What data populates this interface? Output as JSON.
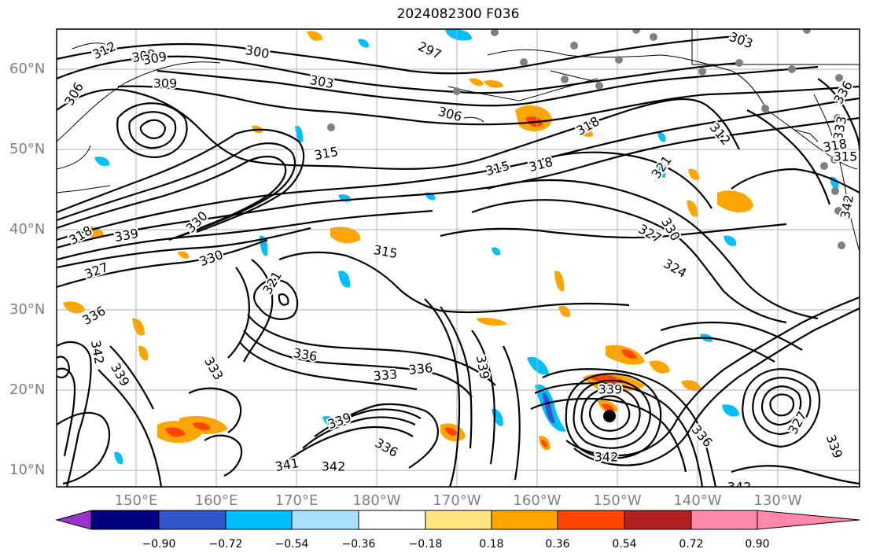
{
  "title": "2024082300 F036",
  "lat_labels": [
    "60°N",
    "50°N",
    "40°N",
    "30°N",
    "20°N",
    "10°N"
  ],
  "lon_labels": [
    "150°E",
    "160°E",
    "170°E",
    "180°W",
    "170°W",
    "160°W",
    "150°W",
    "140°W",
    "130°W"
  ],
  "colorbar": {
    "colors": [
      "#9933cc",
      "#000080",
      "#3355cc",
      "#00bfff",
      "#aadfff",
      "#ffffff",
      "#ffe680",
      "#ffa500",
      "#ff4500",
      "#b22222",
      "#ff88aa"
    ],
    "tick_labels": [
      "−0.90",
      "−0.72",
      "−0.54",
      "−0.36",
      "−0.18",
      "0.18",
      "0.36",
      "0.54",
      "0.72",
      "0.90"
    ]
  },
  "contour_labels": [
    "312",
    "309",
    "300",
    "297",
    "303",
    "306",
    "309",
    "303",
    "306",
    "318",
    "312",
    "315",
    "315",
    "318",
    "321",
    "327",
    "330",
    "324",
    "315",
    "330",
    "333",
    "336",
    "339",
    "342",
    "327",
    "330",
    "336",
    "336",
    "333",
    "336",
    "333",
    "318",
    "342",
    "339",
    "339",
    "342",
    "327",
    "339",
    "341",
    "342",
    "339",
    "336",
    "342",
    "309",
    "315",
    "321",
    "318",
    "339",
    "336"
  ]
}
